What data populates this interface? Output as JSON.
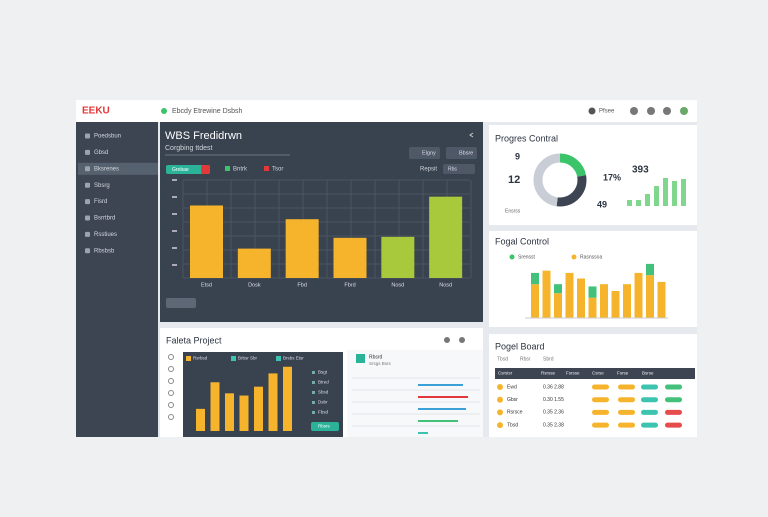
{
  "header": {
    "logo": "EEKU",
    "breadcrumb": "Ebcdy Etrewine Dsbsh",
    "user": "Pfsee"
  },
  "sidebar": {
    "items": [
      "Poedsbun",
      "Gbsd",
      "Bksrenes",
      "Sbsrg",
      "Fisrd",
      "Bsrrtbrd",
      "Rsstiues",
      "Rbsbsb"
    ],
    "active": 2
  },
  "wbs": {
    "title": "WBS Fredidrwn",
    "subtitle": "Corgbing ttdest",
    "tabs": [
      "Grebae",
      "Bntrk",
      "Tsor"
    ],
    "buttons": [
      "Elgny",
      "Bbsre"
    ],
    "filter": "Repsit",
    "filter_value": "Rbs",
    "categories": [
      "Etsd",
      "Dosk",
      "Fbd",
      "Fbrd",
      "Nosd",
      "Nosd"
    ],
    "values": [
      74,
      30,
      60,
      41,
      42,
      83
    ],
    "ylim": [
      0,
      100
    ],
    "colors": [
      "#f6b42c",
      "#f6b42c",
      "#f6b42c",
      "#f6b42c",
      "#a9c93c",
      "#a9c93c"
    ]
  },
  "progress": {
    "title": "Progres Contral",
    "stats": [
      "9",
      "12",
      "17%",
      "393",
      "49"
    ],
    "caption": "Ensrss",
    "donut": [
      {
        "value": 22,
        "color": "#3cc46b"
      },
      {
        "value": 30,
        "color": "#3d4553"
      },
      {
        "value": 48,
        "color": "#c9ced6"
      }
    ],
    "bars": [
      6,
      6,
      12,
      20,
      28,
      25,
      27
    ],
    "bar_color": "#7fd68c"
  },
  "fogal": {
    "title": "Fogal Control",
    "legend": [
      "Srensst",
      "Rasnssoa"
    ],
    "series": [
      {
        "name": "Yellow",
        "color": "#f6b42c",
        "values": [
          30,
          42,
          22,
          40,
          35,
          18,
          30,
          24,
          30,
          40,
          38,
          32
        ]
      },
      {
        "name": "Green",
        "color": "#43c07a",
        "values": [
          10,
          0,
          8,
          0,
          0,
          10,
          0,
          0,
          0,
          0,
          10,
          0
        ]
      }
    ],
    "ylim": [
      0,
      55
    ]
  },
  "faleta": {
    "title": "Faleta Project",
    "tabs": [
      "Rsrbsd",
      "Brbsr Sbr",
      "Brsbs Etsr"
    ],
    "values": [
      20,
      44,
      34,
      32,
      40,
      52,
      58
    ],
    "color": "#f6b42c",
    "ylim": [
      0,
      65
    ],
    "list": [
      "Bsgt",
      "Btred",
      "Sbsd",
      "Dsbr",
      "Fbsd"
    ],
    "button": "Rbsrs",
    "side_title": "Rbsrd",
    "side_sub": "Srsgs Bsrs"
  },
  "board": {
    "title": "Pogel Board",
    "tabs": [
      "Tbsd",
      "Rbsr",
      "Sbrd"
    ],
    "header": [
      "Csrstsr",
      "Rsrsse",
      "Fsrsse",
      "Csrse",
      "Fsrse",
      "Bsrse"
    ],
    "rows": [
      {
        "name": "Ewd",
        "nums": "0.36 2.88",
        "colors": [
          "#f6b42c",
          "#f6b42c",
          "#3cc4b0",
          "#43c07a"
        ]
      },
      {
        "name": "Gbsr",
        "nums": "0.30 1.55",
        "colors": [
          "#f6b42c",
          "#f6b42c",
          "#3cc4b0",
          "#43c07a"
        ]
      },
      {
        "name": "Rsrsce",
        "nums": "0.35 2.36",
        "colors": [
          "#f6b42c",
          "#f6b42c",
          "#3cc4b0",
          "#e74c4c"
        ]
      },
      {
        "name": "Tbsd",
        "nums": "0.35 2.38",
        "colors": [
          "#f6b42c",
          "#f6b42c",
          "#3cc4b0",
          "#e74c4c"
        ]
      }
    ]
  }
}
